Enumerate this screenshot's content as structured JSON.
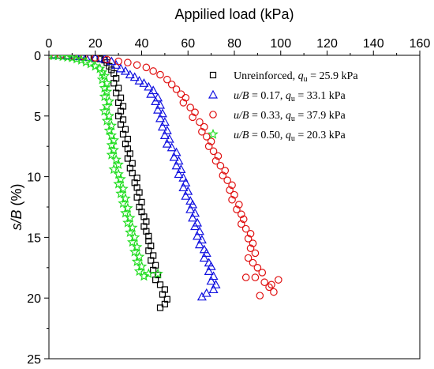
{
  "chart_data": {
    "type": "scatter",
    "title": "",
    "xlabel": "Appilied load (kPa)",
    "ylabel": "s/B (%)",
    "ylabel_parts": {
      "italic": "s/B",
      "plain": " (%)"
    },
    "xlim": [
      0,
      160
    ],
    "ylim": [
      0,
      25
    ],
    "y_inverted": true,
    "x_axis_position": "top",
    "x_ticks": [
      0,
      20,
      40,
      60,
      80,
      100,
      120,
      140,
      160
    ],
    "y_ticks": [
      0,
      5,
      10,
      15,
      20,
      25
    ],
    "x_tick_labels": [
      "0",
      "20",
      "40",
      "60",
      "80",
      "100",
      "120",
      "140",
      "160"
    ],
    "y_tick_labels": [
      "0",
      "5",
      "10",
      "15",
      "20",
      "25"
    ],
    "grid": false,
    "legend_position": "top-right",
    "series": [
      {
        "name": "Unreinforced,  qu = 25.9 kPa",
        "legend": {
          "a": "Unreinforced,  ",
          "a_italic": false,
          "q": "q",
          "u": "u",
          "b": " = 25.9 kPa"
        },
        "marker": "square",
        "color": "#000000",
        "points": [
          [
            0,
            0
          ],
          [
            2,
            0
          ],
          [
            5,
            0
          ],
          [
            8,
            0.05
          ],
          [
            11,
            0.1
          ],
          [
            14,
            0.15
          ],
          [
            17,
            0.2
          ],
          [
            20,
            0.25
          ],
          [
            22,
            0.3
          ],
          [
            24,
            0.4
          ],
          [
            25,
            0.6
          ],
          [
            26,
            0.9
          ],
          [
            27,
            1.2
          ],
          [
            28,
            1.5
          ],
          [
            29,
            1.9
          ],
          [
            28,
            2.3
          ],
          [
            30,
            2.7
          ],
          [
            29,
            3.1
          ],
          [
            31,
            3.5
          ],
          [
            30,
            3.9
          ],
          [
            32,
            4.2
          ],
          [
            31,
            4.6
          ],
          [
            30,
            5.0
          ],
          [
            32,
            5.3
          ],
          [
            31,
            5.7
          ],
          [
            33,
            6.1
          ],
          [
            32,
            6.5
          ],
          [
            34,
            6.9
          ],
          [
            33,
            7.3
          ],
          [
            34,
            7.7
          ],
          [
            35,
            8.1
          ],
          [
            34,
            8.5
          ],
          [
            36,
            8.9
          ],
          [
            35,
            9.3
          ],
          [
            36,
            9.7
          ],
          [
            38,
            10.1
          ],
          [
            37,
            10.5
          ],
          [
            38,
            10.9
          ],
          [
            39,
            11.3
          ],
          [
            38,
            11.7
          ],
          [
            40,
            12.1
          ],
          [
            39,
            12.5
          ],
          [
            40,
            12.9
          ],
          [
            41,
            13.3
          ],
          [
            42,
            13.7
          ],
          [
            41,
            14.1
          ],
          [
            42,
            14.5
          ],
          [
            43,
            14.9
          ],
          [
            43,
            15.3
          ],
          [
            44,
            15.7
          ],
          [
            43,
            16.1
          ],
          [
            45,
            16.5
          ],
          [
            44,
            16.9
          ],
          [
            46,
            17.3
          ],
          [
            45,
            17.7
          ],
          [
            47,
            18.1
          ],
          [
            46,
            18.5
          ],
          [
            48,
            18.9
          ],
          [
            50,
            19.3
          ],
          [
            49,
            19.7
          ],
          [
            51,
            20.1
          ],
          [
            50,
            20.5
          ],
          [
            48,
            20.8
          ]
        ]
      },
      {
        "name": "u/B = 0.17,  qu = 33.1 kPa",
        "legend": {
          "a": "u/B",
          "a_italic": true,
          "rest": " = 0.17,  ",
          "q": "q",
          "u": "u",
          "b": " = 33.1 kPa"
        },
        "marker": "triangle",
        "color": "#1010e0",
        "points": [
          [
            0,
            0
          ],
          [
            4,
            0
          ],
          [
            8,
            0.05
          ],
          [
            12,
            0.1
          ],
          [
            16,
            0.15
          ],
          [
            20,
            0.2
          ],
          [
            24,
            0.3
          ],
          [
            27,
            0.5
          ],
          [
            29,
            0.8
          ],
          [
            31,
            1.1
          ],
          [
            33,
            1.3
          ],
          [
            35,
            1.6
          ],
          [
            37,
            1.8
          ],
          [
            39,
            2.1
          ],
          [
            41,
            2.3
          ],
          [
            43,
            2.6
          ],
          [
            45,
            2.9
          ],
          [
            44,
            3.2
          ],
          [
            47,
            3.5
          ],
          [
            46,
            3.8
          ],
          [
            48,
            4.1
          ],
          [
            47,
            4.5
          ],
          [
            49,
            4.8
          ],
          [
            48,
            5.2
          ],
          [
            50,
            5.5
          ],
          [
            49,
            5.9
          ],
          [
            51,
            6.2
          ],
          [
            50,
            6.6
          ],
          [
            52,
            6.9
          ],
          [
            51,
            7.3
          ],
          [
            53,
            7.6
          ],
          [
            55,
            8.0
          ],
          [
            54,
            8.4
          ],
          [
            56,
            8.7
          ],
          [
            55,
            9.1
          ],
          [
            57,
            9.4
          ],
          [
            56,
            9.8
          ],
          [
            58,
            10.1
          ],
          [
            59,
            10.5
          ],
          [
            58,
            10.9
          ],
          [
            60,
            11.2
          ],
          [
            59,
            11.6
          ],
          [
            61,
            12.0
          ],
          [
            62,
            12.3
          ],
          [
            61,
            12.7
          ],
          [
            63,
            13.0
          ],
          [
            62,
            13.4
          ],
          [
            64,
            13.8
          ],
          [
            63,
            14.1
          ],
          [
            65,
            14.5
          ],
          [
            64,
            14.9
          ],
          [
            66,
            15.2
          ],
          [
            65,
            15.6
          ],
          [
            67,
            16.0
          ],
          [
            68,
            16.3
          ],
          [
            67,
            16.7
          ],
          [
            69,
            17.1
          ],
          [
            70,
            17.4
          ],
          [
            69,
            17.8
          ],
          [
            71,
            18.2
          ],
          [
            70,
            18.6
          ],
          [
            72,
            18.9
          ],
          [
            71,
            19.3
          ],
          [
            68,
            19.6
          ],
          [
            66,
            19.9
          ]
        ]
      },
      {
        "name": "u/B = 0.33,  qu = 37.9 kPa",
        "legend": {
          "a": "u/B",
          "a_italic": true,
          "rest": " = 0.33,  ",
          "q": "q",
          "u": "u",
          "b": " = 37.9 kPa"
        },
        "marker": "circle",
        "color": "#e01010",
        "points": [
          [
            0,
            0
          ],
          [
            5,
            0
          ],
          [
            10,
            0.05
          ],
          [
            15,
            0.1
          ],
          [
            20,
            0.2
          ],
          [
            25,
            0.35
          ],
          [
            30,
            0.5
          ],
          [
            34,
            0.6
          ],
          [
            38,
            0.8
          ],
          [
            42,
            1.0
          ],
          [
            45,
            1.3
          ],
          [
            48,
            1.6
          ],
          [
            51,
            2.0
          ],
          [
            53,
            2.4
          ],
          [
            55,
            2.8
          ],
          [
            57,
            3.2
          ],
          [
            59,
            3.5
          ],
          [
            58,
            3.9
          ],
          [
            61,
            4.3
          ],
          [
            63,
            4.7
          ],
          [
            62,
            5.1
          ],
          [
            65,
            5.5
          ],
          [
            67,
            5.9
          ],
          [
            66,
            6.3
          ],
          [
            68,
            6.7
          ],
          [
            70,
            7.1
          ],
          [
            69,
            7.5
          ],
          [
            71,
            7.9
          ],
          [
            73,
            8.3
          ],
          [
            72,
            8.7
          ],
          [
            74,
            9.1
          ],
          [
            76,
            9.5
          ],
          [
            75,
            9.9
          ],
          [
            77,
            10.3
          ],
          [
            79,
            10.7
          ],
          [
            78,
            11.1
          ],
          [
            80,
            11.5
          ],
          [
            79,
            11.9
          ],
          [
            82,
            12.3
          ],
          [
            81,
            12.7
          ],
          [
            83,
            13.1
          ],
          [
            84,
            13.5
          ],
          [
            83,
            13.9
          ],
          [
            85,
            14.3
          ],
          [
            87,
            14.7
          ],
          [
            86,
            15.1
          ],
          [
            88,
            15.5
          ],
          [
            87,
            15.9
          ],
          [
            89,
            16.3
          ],
          [
            86,
            16.7
          ],
          [
            88,
            17.1
          ],
          [
            90,
            17.5
          ],
          [
            92,
            17.9
          ],
          [
            89,
            18.3
          ],
          [
            93,
            18.7
          ],
          [
            95,
            19.1
          ],
          [
            97,
            19.5
          ],
          [
            99,
            18.5
          ],
          [
            96,
            18.9
          ],
          [
            91,
            19.8
          ],
          [
            85,
            18.3
          ]
        ]
      },
      {
        "name": "u/B = 0.50,  qu = 20.3 kPa",
        "legend": {
          "a": "u/B",
          "a_italic": true,
          "rest": " = 0.50,  ",
          "q": "q",
          "u": "u",
          "b": " = 20.3 kPa"
        },
        "marker": "star",
        "color": "#22dd22",
        "points": [
          [
            0,
            0
          ],
          [
            2,
            0.02
          ],
          [
            4,
            0.05
          ],
          [
            6,
            0.1
          ],
          [
            8,
            0.15
          ],
          [
            10,
            0.2
          ],
          [
            12,
            0.3
          ],
          [
            14,
            0.4
          ],
          [
            16,
            0.55
          ],
          [
            18,
            0.7
          ],
          [
            20,
            0.9
          ],
          [
            22,
            1.1
          ],
          [
            23,
            1.4
          ],
          [
            24,
            1.7
          ],
          [
            23,
            2.0
          ],
          [
            25,
            2.3
          ],
          [
            24,
            2.7
          ],
          [
            25,
            3.0
          ],
          [
            24,
            3.4
          ],
          [
            26,
            3.8
          ],
          [
            25,
            4.2
          ],
          [
            24,
            4.6
          ],
          [
            26,
            5.0
          ],
          [
            25,
            5.4
          ],
          [
            27,
            5.8
          ],
          [
            26,
            6.2
          ],
          [
            27,
            6.6
          ],
          [
            28,
            7.0
          ],
          [
            27,
            7.4
          ],
          [
            28,
            7.8
          ],
          [
            27,
            8.2
          ],
          [
            29,
            8.6
          ],
          [
            30,
            9.0
          ],
          [
            28,
            9.4
          ],
          [
            30,
            9.8
          ],
          [
            31,
            10.2
          ],
          [
            30,
            10.6
          ],
          [
            32,
            11.0
          ],
          [
            31,
            11.4
          ],
          [
            33,
            11.8
          ],
          [
            32,
            12.2
          ],
          [
            34,
            12.6
          ],
          [
            33,
            13.0
          ],
          [
            35,
            13.4
          ],
          [
            34,
            13.8
          ],
          [
            36,
            14.2
          ],
          [
            35,
            14.6
          ],
          [
            37,
            15.0
          ],
          [
            36,
            15.4
          ],
          [
            38,
            15.8
          ],
          [
            37,
            16.2
          ],
          [
            39,
            16.6
          ],
          [
            38,
            17.0
          ],
          [
            40,
            17.4
          ],
          [
            39,
            17.8
          ],
          [
            41,
            18.2
          ],
          [
            43,
            18.0
          ],
          [
            47,
            18.0
          ]
        ]
      }
    ]
  }
}
